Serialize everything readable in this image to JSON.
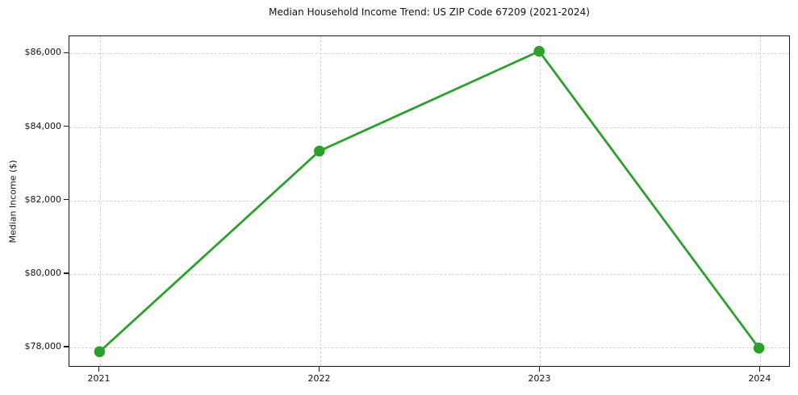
{
  "chart_data": {
    "type": "line",
    "title": "Median Household Income Trend: US ZIP Code 67209 (2021-2024)",
    "ylabel": "Median Income ($)",
    "xlabel": "",
    "x": [
      2021,
      2022,
      2023,
      2024
    ],
    "xtick_labels": [
      "2021",
      "2022",
      "2023",
      "2024"
    ],
    "series": [
      {
        "name": "Median Household Income",
        "values": [
          77840,
          83330,
          86060,
          77940
        ]
      }
    ],
    "ylim": [
      77450,
      86470
    ],
    "yticks": [
      78000,
      80000,
      82000,
      84000,
      86000
    ],
    "ytick_labels": [
      "$78,000",
      "$80,000",
      "$82,000",
      "$84,000",
      "$86,000"
    ],
    "grid": true,
    "grid_style": "dashed",
    "legend_position": "none",
    "line_color": "#2ca02c",
    "marker": "circle",
    "marker_radius": 6.8,
    "line_width": 2.8,
    "background_color": "#ffffff",
    "spine_color": "#1a1a1a",
    "grid_color": "#d4d4d4",
    "text_color": "#141414",
    "x_margin_frac": 0.042
  }
}
